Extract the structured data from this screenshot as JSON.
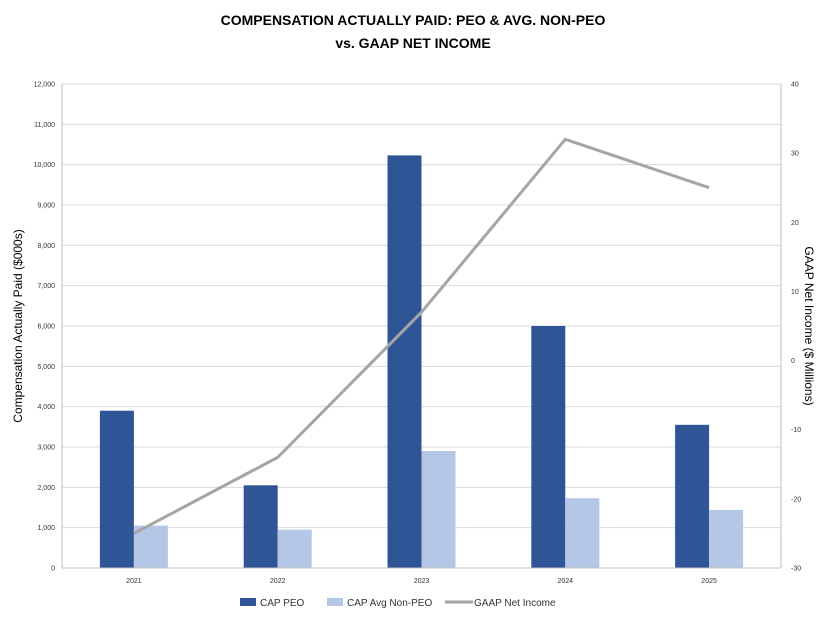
{
  "chart_data": {
    "type": "bar",
    "title_line1": "COMPENSATION ACTUALLY PAID: PEO & AVG. NON-PEO",
    "title_line2": "vs. GAAP NET INCOME",
    "categories": [
      "2021",
      "2022",
      "2023",
      "2024",
      "2025"
    ],
    "series": [
      {
        "name": "CAP PEO",
        "type": "bar",
        "axis": "left",
        "color": "#2F5597",
        "values": [
          3900,
          2050,
          10230,
          6000,
          3550
        ]
      },
      {
        "name": "CAP Avg Non-PEO",
        "type": "bar",
        "axis": "left",
        "color": "#B4C7E7",
        "values": [
          1050,
          950,
          2900,
          1730,
          1440
        ]
      },
      {
        "name": "GAAP Net Income",
        "type": "line",
        "axis": "right",
        "color": "#A5A5A5",
        "values": [
          -25,
          -14,
          7,
          32,
          25
        ]
      }
    ],
    "ylabel": "Compensation Actually Paid ($000s)",
    "y2label": "GAAP Net Income ($ Millions)",
    "ylim": [
      0,
      12000
    ],
    "y2lim": [
      -30,
      40
    ],
    "yticks": [
      "0",
      "1,000",
      "2,000",
      "3,000",
      "4,000",
      "5,000",
      "6,000",
      "7,000",
      "8,000",
      "9,000",
      "10,000",
      "11,000",
      "12,000"
    ],
    "y2ticks": [
      "-30",
      "-20",
      "-10",
      "0",
      "10",
      "20",
      "30",
      "40"
    ],
    "grid": true,
    "legend_position": "bottom"
  }
}
